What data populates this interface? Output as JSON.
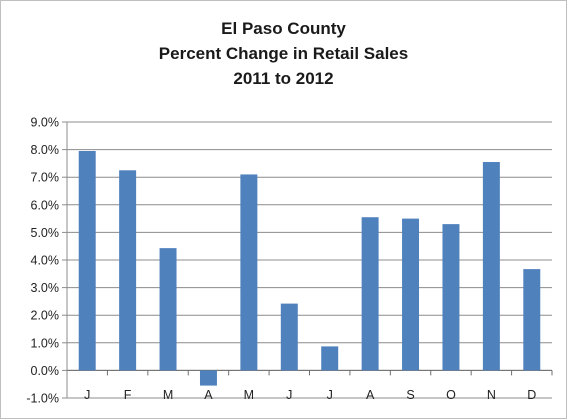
{
  "chart_data": {
    "type": "bar",
    "title": [
      "El Paso County",
      "Percent Change in Retail Sales",
      "2011 to 2012"
    ],
    "xlabel": "",
    "ylabel": "",
    "categories": [
      "J",
      "F",
      "M",
      "A",
      "M",
      "J",
      "J",
      "A",
      "S",
      "O",
      "N",
      "D"
    ],
    "values": [
      7.95,
      7.25,
      4.43,
      -0.55,
      7.1,
      2.42,
      0.87,
      5.55,
      5.5,
      5.3,
      7.55,
      3.67
    ],
    "ylim": [
      -1.0,
      9.0
    ],
    "yticks": [
      "9.0%",
      "8.0%",
      "7.0%",
      "6.0%",
      "5.0%",
      "4.0%",
      "3.0%",
      "2.0%",
      "1.0%",
      "0.0%",
      "-1.0%"
    ],
    "grid": true,
    "legend": "none",
    "bar_color": "#4f81bd",
    "grid_color": "#8c8c8c"
  }
}
